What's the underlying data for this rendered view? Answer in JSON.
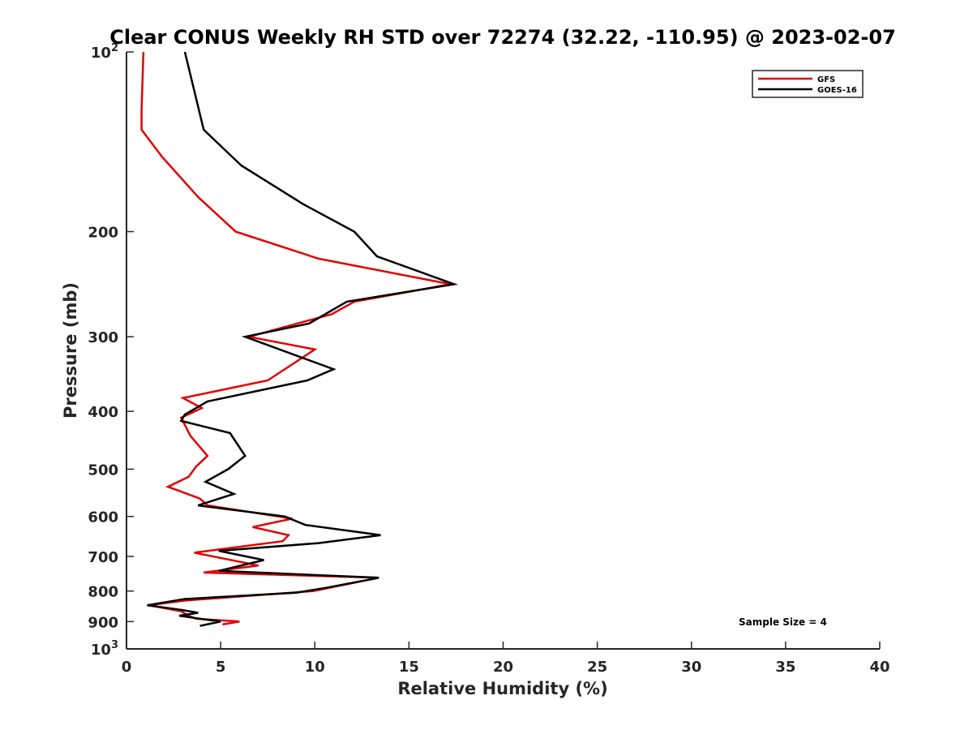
{
  "chart_data": {
    "type": "line",
    "title": "Clear CONUS Weekly RH STD over 72274 (32.22, -110.95) @ 2023-02-07",
    "xlabel": "Relative Humidity (%)",
    "ylabel": "Pressure (mb)",
    "xlim": [
      0,
      40
    ],
    "ylim": [
      100,
      1000
    ],
    "y_scale": "log",
    "y_reversed": true,
    "grid": false,
    "legend_position": "top-right",
    "annotation": "Sample Size = 4",
    "x_ticks": [
      0,
      5,
      10,
      15,
      20,
      25,
      30,
      35,
      40
    ],
    "y_ticks": [
      {
        "value": 100,
        "label": "10",
        "sup": "2"
      },
      {
        "value": 200,
        "label": "200",
        "sup": ""
      },
      {
        "value": 300,
        "label": "300",
        "sup": ""
      },
      {
        "value": 400,
        "label": "400",
        "sup": ""
      },
      {
        "value": 500,
        "label": "500",
        "sup": ""
      },
      {
        "value": 600,
        "label": "600",
        "sup": ""
      },
      {
        "value": 700,
        "label": "700",
        "sup": ""
      },
      {
        "value": 800,
        "label": "800",
        "sup": ""
      },
      {
        "value": 900,
        "label": "900",
        "sup": ""
      },
      {
        "value": 1000,
        "label": "10",
        "sup": "3"
      }
    ],
    "series": [
      {
        "name": "GFS",
        "color": "#e30000",
        "points": [
          [
            0.9,
            100
          ],
          [
            0.8,
            125
          ],
          [
            0.8,
            135
          ],
          [
            1.9,
            150
          ],
          [
            3.8,
            175
          ],
          [
            5.8,
            200
          ],
          [
            10.2,
            222
          ],
          [
            17.2,
            245
          ],
          [
            12.1,
            262
          ],
          [
            10.9,
            275
          ],
          [
            6.5,
            300
          ],
          [
            10.0,
            315
          ],
          [
            7.5,
            355
          ],
          [
            3.0,
            380
          ],
          [
            4.0,
            395
          ],
          [
            2.9,
            410
          ],
          [
            3.4,
            440
          ],
          [
            4.3,
            475
          ],
          [
            3.7,
            495
          ],
          [
            3.3,
            515
          ],
          [
            2.2,
            535
          ],
          [
            3.9,
            560
          ],
          [
            4.3,
            575
          ],
          [
            8.8,
            605
          ],
          [
            6.7,
            625
          ],
          [
            8.6,
            645
          ],
          [
            8.3,
            660
          ],
          [
            3.6,
            690
          ],
          [
            7.0,
            725
          ],
          [
            4.1,
            745
          ],
          [
            13.4,
            760
          ],
          [
            9.9,
            800
          ],
          [
            3.1,
            830
          ],
          [
            1.2,
            845
          ],
          [
            2.9,
            865
          ],
          [
            3.3,
            880
          ],
          [
            3.7,
            890
          ],
          [
            6.0,
            900
          ],
          [
            5.1,
            910
          ]
        ]
      },
      {
        "name": "GOES-16",
        "color": "#000000",
        "points": [
          [
            3.1,
            100
          ],
          [
            4.1,
            135
          ],
          [
            6.1,
            155
          ],
          [
            9.4,
            180
          ],
          [
            12.1,
            200
          ],
          [
            13.3,
            220
          ],
          [
            17.4,
            245
          ],
          [
            11.7,
            262
          ],
          [
            9.7,
            285
          ],
          [
            6.3,
            300
          ],
          [
            11.0,
            340
          ],
          [
            9.6,
            355
          ],
          [
            4.3,
            385
          ],
          [
            3.1,
            405
          ],
          [
            2.9,
            415
          ],
          [
            5.5,
            435
          ],
          [
            6.3,
            475
          ],
          [
            5.4,
            500
          ],
          [
            4.2,
            525
          ],
          [
            5.7,
            550
          ],
          [
            3.8,
            575
          ],
          [
            8.4,
            600
          ],
          [
            9.5,
            620
          ],
          [
            13.5,
            645
          ],
          [
            10.2,
            665
          ],
          [
            4.9,
            685
          ],
          [
            7.3,
            710
          ],
          [
            4.9,
            740
          ],
          [
            13.4,
            760
          ],
          [
            10.6,
            790
          ],
          [
            9.0,
            805
          ],
          [
            3.1,
            825
          ],
          [
            1.1,
            845
          ],
          [
            2.9,
            860
          ],
          [
            3.8,
            870
          ],
          [
            2.8,
            880
          ],
          [
            3.9,
            890
          ],
          [
            5.0,
            900
          ],
          [
            3.9,
            915
          ]
        ]
      }
    ]
  }
}
